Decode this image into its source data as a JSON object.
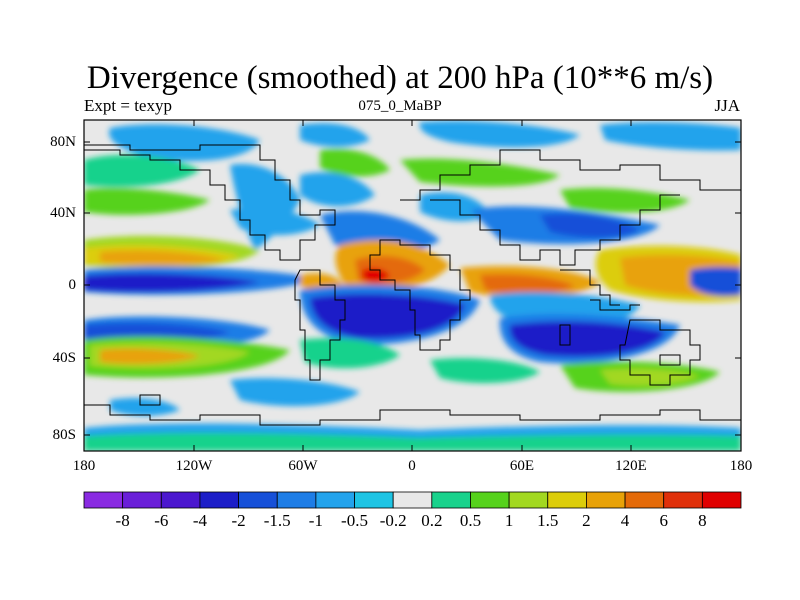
{
  "title": "Divergence (smoothed) at 200 hPa (10**6 m/s)",
  "subtitle_left": "Expt = texyp",
  "subtitle_center": "075_0_MaBP",
  "subtitle_right": "JJA",
  "y_ticks": [
    "80N",
    "40N",
    "0",
    "40S",
    "80S"
  ],
  "x_ticks": [
    "180",
    "120W",
    "60W",
    "0",
    "60E",
    "120E",
    "180"
  ],
  "colorbar": {
    "labels": [
      "-8",
      "-6",
      "-4",
      "-2",
      "-1.5",
      "-1",
      "-0.5",
      "-0.2",
      "0.2",
      "0.5",
      "1",
      "1.5",
      "2",
      "4",
      "6",
      "8"
    ],
    "colors": [
      "#8a2be2",
      "#6a1fd8",
      "#4b17cf",
      "#1c1ec8",
      "#1650d8",
      "#1e7de6",
      "#23a3ec",
      "#1ec4e4",
      "#e8e8e8",
      "#19d28c",
      "#56d21c",
      "#a2d820",
      "#dccd0a",
      "#e8a208",
      "#e46a08",
      "#e0300a",
      "#e00000"
    ]
  }
}
